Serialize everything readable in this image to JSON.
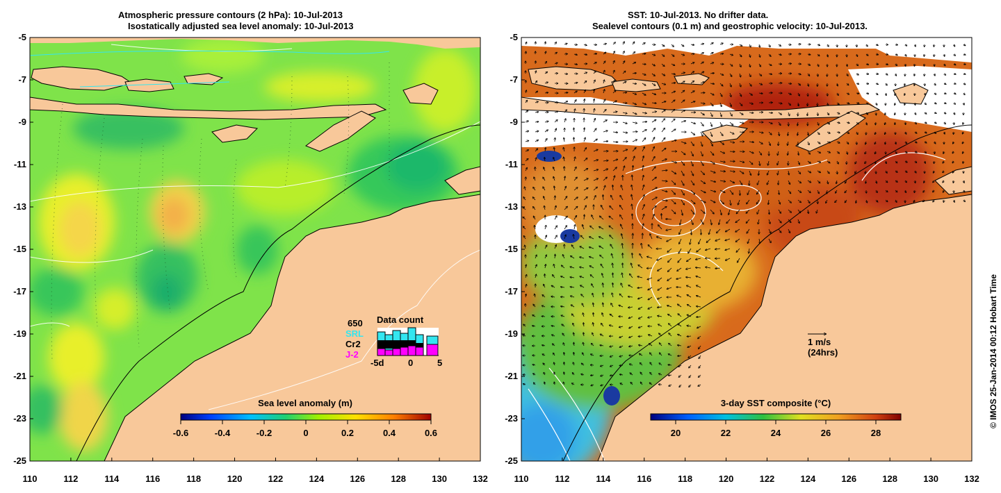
{
  "left_panel": {
    "title_line1": "Atmospheric pressure contours (2 hPa): 10-Jul-2013",
    "title_line2": "Isostatically adjusted sea level anomaly: 10-Jul-2013",
    "colorbar": {
      "label": "Sea level anomaly (m)",
      "ticks": [
        "-0.6",
        "-0.4",
        "-0.2",
        "0",
        "0.2",
        "0.4",
        "0.6"
      ],
      "min": -0.6,
      "max": 0.6
    },
    "legend": {
      "title": "Data count",
      "count": "650",
      "satellites": [
        {
          "name": "SRL",
          "color": "#33e6f0"
        },
        {
          "name": "Cr2",
          "color": "#000000"
        },
        {
          "name": "J-2",
          "color": "#ff00ff"
        }
      ],
      "axis_ticks": [
        "-5d",
        "0",
        "5"
      ]
    }
  },
  "right_panel": {
    "title_line1": "SST: 10-Jul-2013. No drifter data.",
    "title_line2": "Sealevel contours (0.1 m) and geostrophic velocity: 10-Jul-2013.",
    "colorbar": {
      "label": "3-day SST composite (°C)",
      "ticks": [
        "20",
        "22",
        "24",
        "26",
        "28"
      ],
      "min": 19,
      "max": 29
    },
    "scale_arrow": {
      "label1": "1 m/s",
      "label2": "(24hrs)"
    }
  },
  "axes": {
    "lon_ticks": [
      "110",
      "112",
      "114",
      "116",
      "118",
      "120",
      "122",
      "124",
      "126",
      "128",
      "130",
      "132"
    ],
    "lat_ticks": [
      "-5",
      "-7",
      "-9",
      "-11",
      "-13",
      "-15",
      "-17",
      "-19",
      "-21",
      "-23",
      "-25"
    ],
    "lon_range": [
      110,
      132
    ],
    "lat_range": [
      -25,
      -5
    ]
  },
  "credit": "© IMOS 25-Jan-2014 00:12 Hobart Time",
  "colors": {
    "land": "#f8c89a",
    "ocean_left": "#7fe34a",
    "ocean_right": "#d86a1c"
  }
}
